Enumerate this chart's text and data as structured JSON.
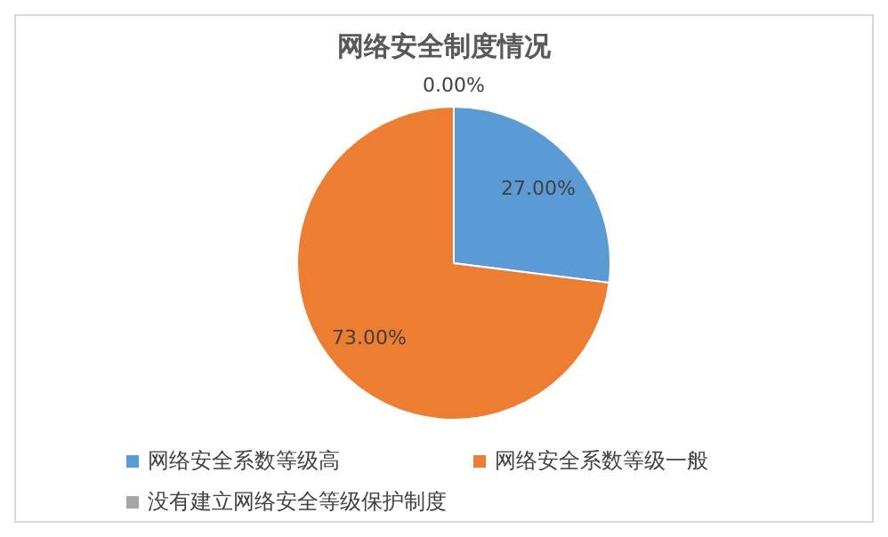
{
  "chart_data": {
    "type": "pie",
    "title": "网络安全制度情况",
    "categories": [
      "网络安全系数等级高",
      "网络安全系数等级一般",
      "没有建立网络安全等级保护制度"
    ],
    "values": [
      27,
      73,
      0
    ],
    "colors": [
      "#5b9bd5",
      "#ed7d31",
      "#a5a5a5"
    ],
    "value_labels": [
      "27.00%",
      "73.00%",
      "0.00%"
    ],
    "legend": "bottom"
  }
}
